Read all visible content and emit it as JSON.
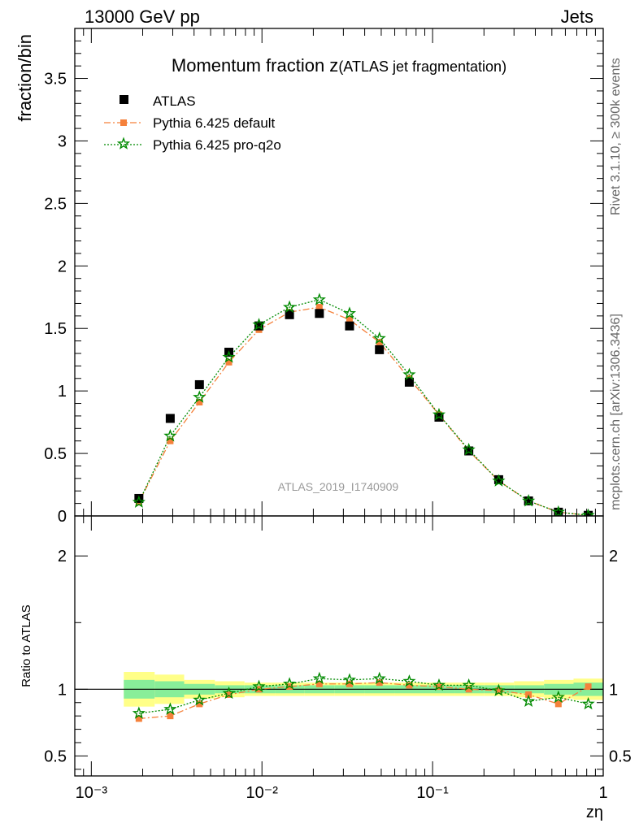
{
  "header": {
    "energy_label": "13000 GeV pp",
    "category_label": "Jets"
  },
  "side_labels": {
    "rivet": "Rivet 3.1.10, ≥ 300k events",
    "mcplots": "mcplots.cern.ch [arXiv:1306.3436]"
  },
  "chart_data": [
    {
      "type": "scatter",
      "title_main": "Momentum fraction z",
      "title_sub": "(ATLAS jet fragmentation)",
      "ylabel": "fraction/bin",
      "xscale": "log",
      "xlim": [
        0.0008,
        1.0
      ],
      "ylim": [
        0,
        3.9
      ],
      "yticks": [
        "0",
        "0.5",
        "1",
        "1.5",
        "2",
        "2.5",
        "3",
        "3.5"
      ],
      "yticks_values": [
        0,
        0.5,
        1,
        1.5,
        2,
        2.5,
        3,
        3.5
      ],
      "watermark": "ATLAS_2019_I1740909",
      "legend_placement": "top-left",
      "x": [
        0.0019,
        0.0029,
        0.0043,
        0.0064,
        0.0096,
        0.0145,
        0.0217,
        0.0326,
        0.0488,
        0.073,
        0.109,
        0.163,
        0.244,
        0.365,
        0.546,
        0.817
      ],
      "series": [
        {
          "name": "ATLAS",
          "marker": "square",
          "color": "#000000",
          "values": [
            0.14,
            0.78,
            1.05,
            1.31,
            1.52,
            1.61,
            1.62,
            1.52,
            1.33,
            1.07,
            0.79,
            0.52,
            0.29,
            0.12,
            0.03,
            0.005
          ]
        },
        {
          "name": "Pythia 6.425 default",
          "marker": "filled-square",
          "line": "dash-dot",
          "color": "#f5813b",
          "values": [
            0.11,
            0.6,
            0.91,
            1.23,
            1.49,
            1.63,
            1.67,
            1.57,
            1.39,
            1.1,
            0.81,
            0.52,
            0.28,
            0.12,
            0.03,
            0.005
          ]
        },
        {
          "name": "Pythia 6.425 pro-q2o",
          "marker": "open-star",
          "line": "dotted",
          "color": "#008a00",
          "values": [
            0.11,
            0.64,
            0.95,
            1.27,
            1.53,
            1.67,
            1.73,
            1.62,
            1.42,
            1.13,
            0.81,
            0.53,
            0.28,
            0.12,
            0.03,
            0.005
          ]
        }
      ]
    },
    {
      "type": "line",
      "ylabel": "Ratio to ATLAS",
      "xlabel": "zη",
      "xscale": "log",
      "xlim": [
        0.0008,
        1.0
      ],
      "ylim": [
        0.35,
        2.3
      ],
      "yticks": [
        "0.5",
        "1",
        "2"
      ],
      "yticks_values": [
        0.5,
        1,
        2
      ],
      "xticks": [
        "10⁻³",
        "10⁻²",
        "10⁻¹",
        "1"
      ],
      "xticks_values": [
        0.001,
        0.01,
        0.1,
        1
      ],
      "reference": 1.0,
      "bin_edges": [
        0.00155,
        0.00235,
        0.0035,
        0.0053,
        0.0079,
        0.0119,
        0.0178,
        0.0267,
        0.04,
        0.06,
        0.09,
        0.135,
        0.2,
        0.3,
        0.45,
        0.67,
        1.0
      ],
      "band_yellow": [
        0.13,
        0.11,
        0.07,
        0.06,
        0.05,
        0.05,
        0.05,
        0.05,
        0.05,
        0.05,
        0.05,
        0.05,
        0.05,
        0.06,
        0.07,
        0.08
      ],
      "band_green": [
        0.07,
        0.06,
        0.04,
        0.03,
        0.03,
        0.03,
        0.03,
        0.03,
        0.03,
        0.03,
        0.03,
        0.03,
        0.03,
        0.03,
        0.04,
        0.05
      ],
      "x": [
        0.0019,
        0.0029,
        0.0043,
        0.0064,
        0.0096,
        0.0145,
        0.0217,
        0.0326,
        0.0488,
        0.073,
        0.109,
        0.163,
        0.244,
        0.365,
        0.546,
        0.817
      ],
      "series": [
        {
          "name": "Pythia 6.425 default",
          "color": "#f5813b",
          "line": "dash-dot",
          "values": [
            0.78,
            0.8,
            0.89,
            0.96,
            1.0,
            1.02,
            1.04,
            1.04,
            1.05,
            1.03,
            1.02,
            1.0,
            0.99,
            0.96,
            0.89,
            1.02
          ]
        },
        {
          "name": "Pythia 6.425 pro-q2o",
          "color": "#008a00",
          "line": "dotted",
          "values": [
            0.82,
            0.85,
            0.92,
            0.97,
            1.02,
            1.04,
            1.08,
            1.07,
            1.08,
            1.06,
            1.03,
            1.03,
            0.99,
            0.91,
            0.94,
            0.89
          ]
        }
      ]
    }
  ]
}
